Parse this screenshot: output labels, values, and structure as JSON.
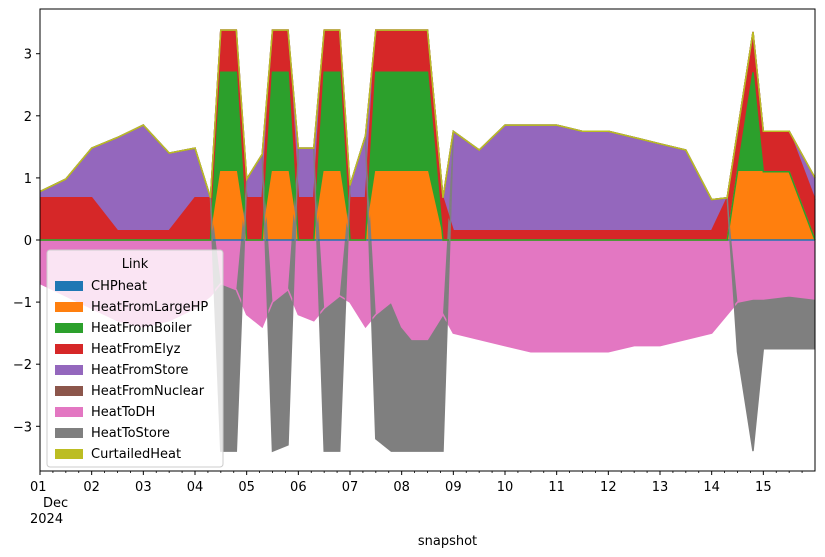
{
  "chart_data": {
    "type": "area",
    "xlabel": "snapshot",
    "ylabel": "",
    "xlim": [
      0,
      15
    ],
    "ylim": [
      -3.72,
      3.72
    ],
    "y_ticks": [
      -3,
      -2,
      -1,
      0,
      1,
      2,
      3
    ],
    "x_ticks": [
      {
        "pos": 0,
        "lines": [
          "01",
          "Dec",
          "2024"
        ]
      },
      {
        "pos": 1,
        "lines": [
          "02"
        ]
      },
      {
        "pos": 2,
        "lines": [
          "03"
        ]
      },
      {
        "pos": 3,
        "lines": [
          "04"
        ]
      },
      {
        "pos": 4,
        "lines": [
          "05"
        ]
      },
      {
        "pos": 5,
        "lines": [
          "06"
        ]
      },
      {
        "pos": 6,
        "lines": [
          "07"
        ]
      },
      {
        "pos": 7,
        "lines": [
          "08"
        ]
      },
      {
        "pos": 8,
        "lines": [
          "09"
        ]
      },
      {
        "pos": 9,
        "lines": [
          "10"
        ]
      },
      {
        "pos": 10,
        "lines": [
          "11"
        ]
      },
      {
        "pos": 11,
        "lines": [
          "12"
        ]
      },
      {
        "pos": 12,
        "lines": [
          "13"
        ]
      },
      {
        "pos": 13,
        "lines": [
          "14"
        ]
      },
      {
        "pos": 14,
        "lines": [
          "15"
        ]
      }
    ],
    "grid": false,
    "legend": {
      "title": "Link",
      "placement": "lower-left"
    },
    "x": [
      0,
      0.5,
      1,
      1.5,
      2,
      2.5,
      3,
      3.3,
      3.5,
      3.8,
      4,
      4.3,
      4.5,
      4.8,
      5,
      5.3,
      5.5,
      5.8,
      6,
      6.3,
      6.5,
      6.8,
      7,
      7.2,
      7.5,
      7.8,
      8,
      8.5,
      9,
      9.5,
      10,
      10.5,
      11,
      11.5,
      12,
      12.5,
      13,
      13.3,
      13.5,
      13.8,
      14,
      14.5,
      15
    ],
    "series": [
      {
        "name": "CHPheat",
        "color": "#1f77b4",
        "values": [
          0,
          0,
          0,
          0,
          0,
          0,
          0,
          0,
          0,
          0,
          0,
          0,
          0,
          0,
          0,
          0,
          0,
          0,
          0,
          0,
          0,
          0,
          0,
          0,
          0,
          0,
          0,
          0,
          0,
          0,
          0,
          0,
          0,
          0,
          0,
          0,
          0,
          0,
          0,
          0,
          0,
          0,
          0
        ]
      },
      {
        "name": "HeatFromLargeHP",
        "color": "#ff7f0e",
        "values": [
          0,
          0,
          0,
          0,
          0,
          0,
          0,
          0,
          1.1,
          1.1,
          0,
          0,
          1.1,
          1.1,
          0,
          0,
          1.1,
          1.1,
          0,
          0,
          1.1,
          1.1,
          1.1,
          1.1,
          1.1,
          0,
          0,
          0,
          0,
          0,
          0,
          0,
          0,
          0,
          0,
          0,
          0,
          0,
          1.1,
          1.1,
          1.1,
          1.1,
          0
        ]
      },
      {
        "name": "HeatFromBoiler",
        "color": "#2ca02c",
        "values": [
          0,
          0,
          0,
          0,
          0,
          0,
          0,
          0,
          1.6,
          1.6,
          0,
          0,
          1.6,
          1.6,
          0,
          0,
          1.6,
          1.6,
          0,
          0,
          1.6,
          1.6,
          1.6,
          1.6,
          1.6,
          0,
          0,
          0,
          0,
          0,
          0,
          0,
          0,
          0,
          0,
          0,
          0,
          0,
          0,
          1.6,
          0,
          0,
          0
        ]
      },
      {
        "name": "HeatFromElyz",
        "color": "#d62728",
        "values": [
          0.68,
          0.68,
          0.68,
          0.15,
          0.15,
          0.15,
          0.68,
          0.68,
          0.68,
          0.68,
          0.68,
          0.68,
          0.68,
          0.68,
          0.68,
          0.68,
          0.68,
          0.68,
          0.68,
          0.68,
          0.68,
          0.68,
          0.68,
          0.68,
          0.68,
          0.68,
          0.15,
          0.15,
          0.15,
          0.15,
          0.15,
          0.15,
          0.15,
          0.15,
          0.15,
          0.15,
          0.15,
          0.68,
          0.65,
          0.65,
          0.65,
          0.65,
          0.65
        ]
      },
      {
        "name": "HeatFromStore",
        "color": "#9467bd",
        "values": [
          0.1,
          0.3,
          0.8,
          1.5,
          1.7,
          1.25,
          0.8,
          0,
          0,
          0,
          0.3,
          0.7,
          0,
          0,
          0.8,
          0.8,
          0,
          0,
          0.2,
          1.0,
          0,
          0,
          0,
          0,
          0,
          0,
          1.6,
          1.3,
          1.7,
          1.7,
          1.7,
          1.6,
          1.6,
          1.5,
          1.4,
          1.3,
          0.5,
          0,
          0,
          0,
          0,
          0,
          0.35
        ]
      },
      {
        "name": "HeatFromNuclear",
        "color": "#8c564b",
        "values": [
          0,
          0,
          0,
          0,
          0,
          0,
          0,
          0,
          0,
          0,
          0,
          0,
          0,
          0,
          0,
          0,
          0,
          0,
          0,
          0,
          0,
          0,
          0,
          0,
          0,
          0,
          0,
          0,
          0,
          0,
          0,
          0,
          0,
          0,
          0,
          0,
          0,
          0,
          0,
          0,
          0,
          0,
          0
        ]
      },
      {
        "name": "HeatToDH",
        "color": "#e377c2",
        "values": [
          -0.7,
          -0.9,
          -1.1,
          -1.3,
          -1.4,
          -1.3,
          -1.1,
          -0.9,
          -0.7,
          -0.8,
          -1.2,
          -1.4,
          -1.0,
          -0.8,
          -1.2,
          -1.3,
          -1.1,
          -0.9,
          -1.0,
          -1.4,
          -1.2,
          -1.0,
          -1.4,
          -1.6,
          -1.6,
          -1.2,
          -1.5,
          -1.6,
          -1.7,
          -1.8,
          -1.8,
          -1.8,
          -1.8,
          -1.7,
          -1.7,
          -1.6,
          -1.5,
          -1.2,
          -1.0,
          -0.95,
          -0.95,
          -0.9,
          -0.95
        ]
      },
      {
        "name": "HeatToStore",
        "color": "#7f7f7f",
        "values": [
          0,
          0,
          0,
          0,
          0,
          0,
          0,
          0,
          -2.7,
          -2.6,
          0,
          0,
          -2.4,
          -2.5,
          0,
          0,
          -2.3,
          -2.5,
          0,
          0,
          -2.0,
          -2.4,
          -2.0,
          -1.8,
          -1.8,
          -2.2,
          0,
          0,
          0,
          0,
          0,
          0,
          0,
          0,
          0,
          0,
          0,
          0,
          -0.8,
          -2.45,
          -0.8,
          -0.85,
          -0.8
        ]
      },
      {
        "name": "CurtailedHeat",
        "color": "#bcbd22",
        "values": [
          0,
          0,
          0,
          0,
          0,
          0,
          0,
          0,
          0,
          0,
          0,
          0,
          0,
          0,
          0,
          0,
          0,
          0,
          0,
          0,
          0,
          0,
          0,
          0,
          0,
          0,
          0,
          0,
          0,
          0,
          0,
          0,
          0,
          0,
          0,
          0,
          0,
          0,
          0,
          0,
          0,
          0,
          0
        ]
      }
    ]
  }
}
